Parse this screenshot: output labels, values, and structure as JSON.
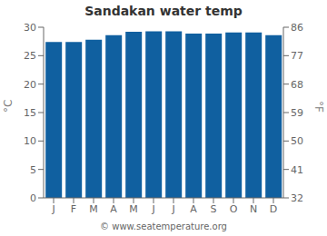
{
  "chart_data": {
    "type": "bar",
    "title": "Sandakan water temp",
    "categories": [
      "J",
      "F",
      "M",
      "A",
      "M",
      "J",
      "J",
      "A",
      "S",
      "O",
      "N",
      "D"
    ],
    "values": [
      27.4,
      27.4,
      27.8,
      28.6,
      29.2,
      29.3,
      29.3,
      28.9,
      28.9,
      29.1,
      29.1,
      28.6
    ],
    "color": "#1060a0",
    "ylim": [
      0,
      30
    ],
    "yticks": [
      0,
      5,
      10,
      15,
      20,
      25,
      30
    ],
    "y2lim": [
      32,
      86
    ],
    "y2ticks": [
      32,
      41,
      50,
      59,
      68,
      77,
      86
    ],
    "ylabel": "°C",
    "y2label": "°F",
    "annotations": [
      "© www.seatemperature.org"
    ],
    "grid": false
  }
}
